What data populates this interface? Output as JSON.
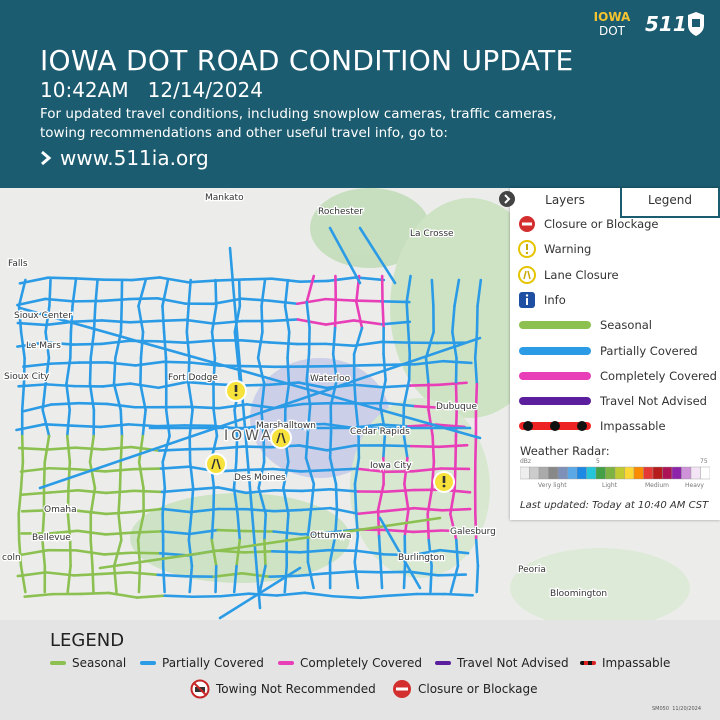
{
  "header": {
    "logo_iowa": "IOWA",
    "logo_dot": "DOT",
    "logo_511": "511",
    "title": "IOWA DOT ROAD CONDITION UPDATE",
    "timestamp": "10:42AM   12/14/2024",
    "description": "For updated travel conditions, including snowplow cameras, traffic cameras, towing recommendations and other useful travel info, go to:",
    "url": "www.511ia.org"
  },
  "map": {
    "place_labels": [
      "Mankato",
      "Rochester",
      "La Crosse",
      "Falls",
      "Sioux Center",
      "Le Mars",
      "Sioux City",
      "Fort Dodge",
      "Waterloo",
      "Dubuque",
      "Marshalltown",
      "Cedar Rapids",
      "IOWA",
      "Iowa City",
      "Des Moines",
      "Omaha",
      "Bellevue",
      "Ottumwa",
      "Burlington",
      "Galesburg",
      "Peoria",
      "Bloomington",
      "coln"
    ]
  },
  "layer_panel": {
    "tabs": [
      "Layers",
      "Legend"
    ],
    "items": [
      "Closure or Blockage",
      "Warning",
      "Lane Closure",
      "Info",
      "Seasonal",
      "Partially Covered",
      "Completely Covered",
      "Travel Not Advised",
      "Impassable"
    ],
    "radar_title": "Weather Radar:",
    "radar_scale": [
      "dBz",
      "5",
      "75"
    ],
    "radar_levels": [
      "Very light",
      "Light",
      "Medium",
      "Heavy"
    ],
    "last_updated": "Last updated: Today at 10:40 AM CST"
  },
  "legend": {
    "title": "LEGEND",
    "items": [
      "Seasonal",
      "Partially Covered",
      "Completely Covered",
      "Travel Not Advised",
      "Impassable",
      "Towing Not Recommended",
      "Closure or Blockage"
    ],
    "footer_code": "SM050  11/20/2024"
  }
}
